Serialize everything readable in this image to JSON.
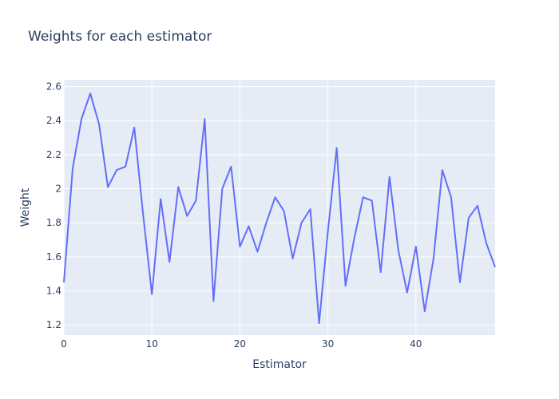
{
  "chart_data": {
    "type": "line",
    "title": "Weights for each estimator",
    "xlabel": "Estimator",
    "ylabel": "Weight",
    "xlim": [
      0,
      49
    ],
    "ylim": [
      1.14,
      2.64
    ],
    "x_ticks": [
      0,
      10,
      20,
      30,
      40
    ],
    "x_tick_labels": [
      "0",
      "10",
      "20",
      "30",
      "40"
    ],
    "y_ticks": [
      1.2,
      1.4,
      1.6,
      1.8,
      2.0,
      2.2,
      2.4,
      2.6
    ],
    "y_tick_labels": [
      "1.2",
      "1.4",
      "1.6",
      "1.8",
      "2",
      "2.2",
      "2.4",
      "2.6"
    ],
    "grid": true,
    "series": [
      {
        "color": "#636efa",
        "x": [
          0,
          1,
          2,
          3,
          4,
          5,
          6,
          7,
          8,
          9,
          10,
          11,
          12,
          13,
          14,
          15,
          16,
          17,
          18,
          19,
          20,
          21,
          22,
          23,
          24,
          25,
          26,
          27,
          28,
          29,
          30,
          31,
          32,
          33,
          34,
          35,
          36,
          37,
          38,
          39,
          40,
          41,
          42,
          43,
          44,
          45,
          46,
          47,
          48,
          49
        ],
        "values": [
          1.45,
          2.12,
          2.41,
          2.56,
          2.38,
          2.01,
          2.11,
          2.13,
          2.36,
          1.85,
          1.38,
          1.94,
          1.57,
          2.01,
          1.84,
          1.93,
          2.41,
          1.34,
          2.0,
          2.13,
          1.66,
          1.78,
          1.63,
          1.8,
          1.95,
          1.87,
          1.59,
          1.8,
          1.88,
          1.21,
          1.75,
          2.24,
          1.43,
          1.71,
          1.95,
          1.93,
          1.51,
          2.07,
          1.64,
          1.39,
          1.66,
          1.28,
          1.59,
          2.11,
          1.95,
          1.45,
          1.83,
          1.9,
          1.68,
          1.54
        ]
      }
    ]
  }
}
